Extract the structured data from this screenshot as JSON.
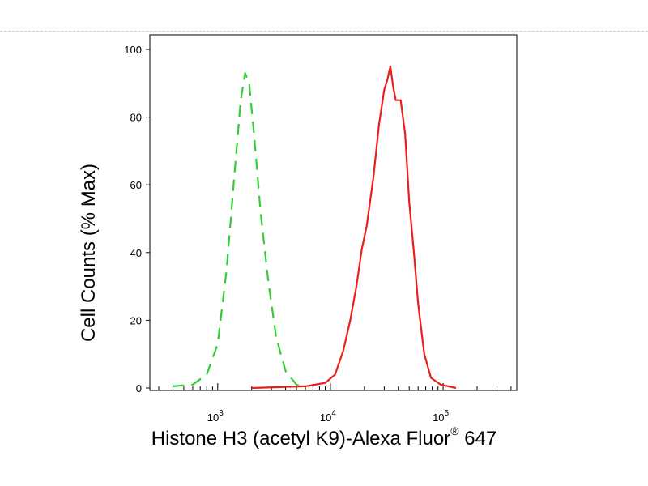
{
  "chart_data": {
    "type": "line",
    "xlabel": "Histone H3 (acetyl K9)-Alexa Fluor",
    "xlabel_sup": "®",
    "xlabel_suffix": " 647",
    "ylabel": "Cell Counts (% Max)",
    "x_scale": "log",
    "xlim": [
      250,
      450000
    ],
    "ylim": [
      0,
      100
    ],
    "y_ticks": [
      0,
      20,
      40,
      60,
      80,
      100
    ],
    "x_major_ticks": [
      1000,
      10000,
      100000
    ],
    "x_tick_labels": [
      {
        "base": "10",
        "exp": "3"
      },
      {
        "base": "10",
        "exp": "4"
      },
      {
        "base": "10",
        "exp": "5"
      }
    ],
    "grid": false,
    "series": [
      {
        "color": "#33cc33",
        "dash": "dashed",
        "x": [
          400,
          600,
          800,
          1000,
          1200,
          1400,
          1600,
          1750,
          1900,
          2100,
          2400,
          2800,
          3300,
          4000,
          5000,
          6000
        ],
        "y": [
          0.5,
          1,
          4,
          13,
          35,
          62,
          85,
          93,
          90,
          75,
          52,
          32,
          15,
          5,
          1,
          0
        ]
      },
      {
        "color": "#e8201a",
        "dash": "solid",
        "x": [
          2000,
          6000,
          9000,
          11000,
          13000,
          15000,
          17000,
          19000,
          21000,
          24000,
          27000,
          30000,
          32000,
          34000,
          36000,
          38000,
          42000,
          46000,
          50000,
          55000,
          60000,
          68000,
          78000,
          95000,
          130000
        ],
        "y": [
          0,
          0.5,
          1.5,
          4,
          11,
          20,
          30,
          41,
          48,
          62,
          78,
          88,
          91,
          95,
          89,
          85,
          85,
          75,
          55,
          40,
          25,
          10,
          3,
          1,
          0
        ]
      }
    ]
  }
}
